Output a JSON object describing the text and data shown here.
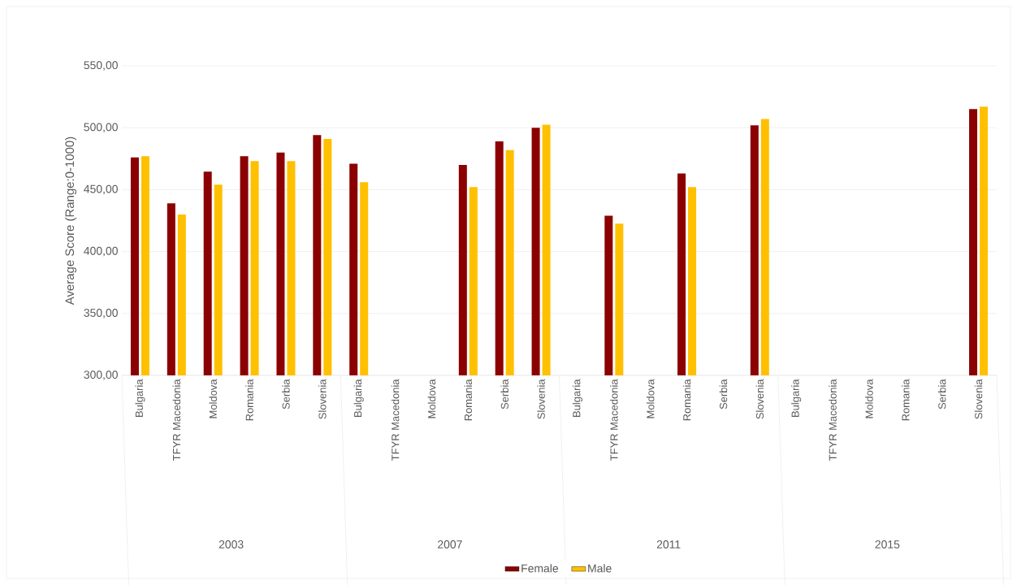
{
  "chart_data": {
    "type": "bar",
    "ylabel": "Average Score (Range:0-1000)",
    "categories": [
      "Bulgaria",
      "TFYR Macedonia",
      "Moldova",
      "Romania",
      "Serbia",
      "Slovenia",
      "Bulgaria",
      "TFYR Macedonia",
      "Moldova",
      "Romania",
      "Serbia",
      "Slovenia",
      "Bulgaria",
      "TFYR Macedonia",
      "Moldova",
      "Romania",
      "Serbia",
      "Slovenia",
      "Bulgaria",
      "TFYR Macedonia",
      "Moldova",
      "Romania",
      "Serbia",
      "Slovenia"
    ],
    "annotations": [
      "2003",
      "2007",
      "2011",
      "2015"
    ],
    "series": [
      {
        "name": "Female",
        "color": "#8B0000",
        "values": [
          476,
          439,
          464.5,
          477,
          480,
          494,
          471,
          null,
          null,
          470,
          489,
          500,
          null,
          429,
          null,
          463,
          null,
          502,
          null,
          null,
          null,
          null,
          null,
          515
        ]
      },
      {
        "name": "Male",
        "color": "#FFC000",
        "values": [
          477,
          430,
          454,
          473,
          473,
          491,
          456,
          null,
          null,
          452,
          482,
          502.5,
          null,
          422.5,
          null,
          452,
          null,
          507,
          null,
          null,
          null,
          null,
          null,
          517
        ]
      }
    ],
    "ylim": [
      300,
      550
    ],
    "yticks": [
      {
        "value": 300,
        "label": "300,00"
      },
      {
        "value": 350,
        "label": "350,00"
      },
      {
        "value": 400,
        "label": "400,00"
      },
      {
        "value": 450,
        "label": "450,00"
      },
      {
        "value": 500,
        "label": "500,00"
      },
      {
        "value": 550,
        "label": "550,00"
      }
    ],
    "grid": "y",
    "legend": "bottom"
  }
}
